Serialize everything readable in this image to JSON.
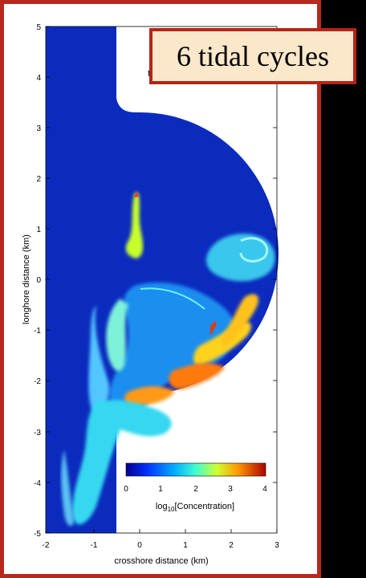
{
  "title_box": {
    "text": "6 tidal cycles"
  },
  "partial_title": {
    "text": "t"
  },
  "axes": {
    "x_label": "crosshore distance (km)",
    "y_label": "longhore distance (km)",
    "x_ticks": [
      "-2",
      "-1",
      "0",
      "1",
      "2",
      "3"
    ],
    "y_ticks": [
      "5",
      "4",
      "3",
      "2",
      "1",
      "0",
      "-1",
      "-2",
      "-3",
      "-4",
      "-5"
    ]
  },
  "colorbar": {
    "ticks": [
      "0",
      "1",
      "2",
      "3",
      "4"
    ],
    "label_prefix": "log",
    "label_sub": "10",
    "label_rest": "[Concentration]"
  },
  "colors": {
    "background_field": "#0b2bbf",
    "border": "#b8291d",
    "title_fill": "#fbe7c9"
  }
}
